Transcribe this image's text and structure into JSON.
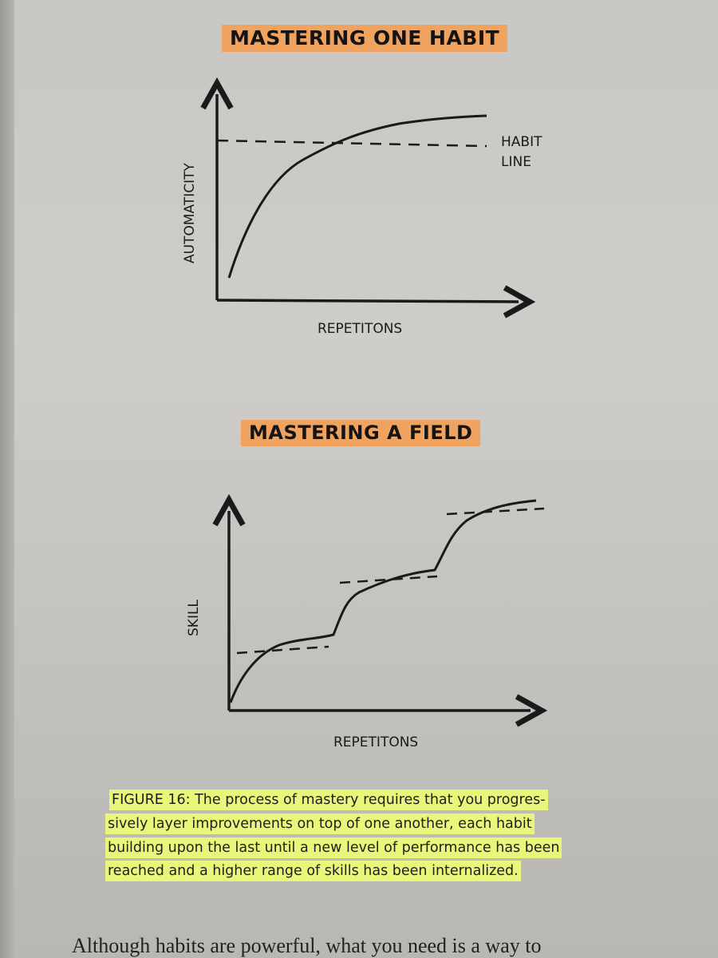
{
  "figure1": {
    "title": "MASTERING ONE HABIT",
    "ylabel": "AUTOMATICITY",
    "xlabel": "REPETITONS",
    "annotation_line1": "HABIT",
    "annotation_line2": "LINE"
  },
  "figure2": {
    "title": "MASTERING A FIELD",
    "ylabel": "SKILL",
    "xlabel": "REPETITONS"
  },
  "caption": {
    "lines": [
      "FIGURE 16: The process of mastery requires that you progres-",
      "sively layer improvements on top of one another, each habit",
      "building upon the last until a new level of performance has been",
      "reached and a higher range of skills has been internalized."
    ]
  },
  "next_line_fragment": "Although habits are powerful, what you need is a way to",
  "colors": {
    "title_highlight": "#f0a35f",
    "caption_highlight": "#e6f77a",
    "ink": "#1a1a1a"
  }
}
